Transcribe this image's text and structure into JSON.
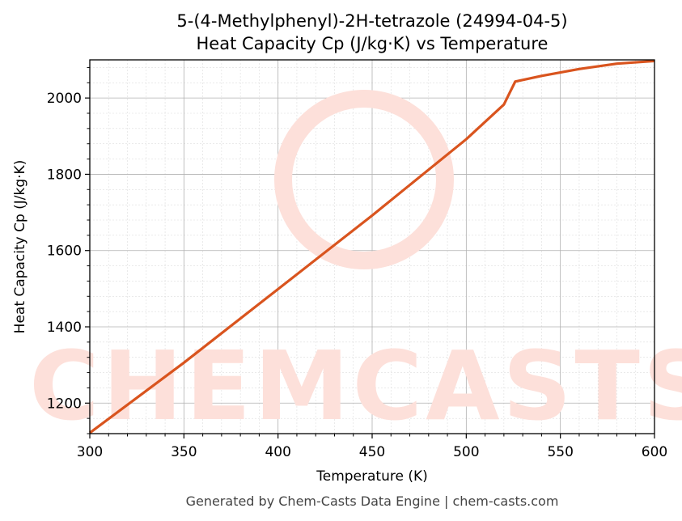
{
  "chart_data": {
    "type": "line",
    "title": "5-(4-Methylphenyl)-2H-tetrazole (24994-04-5)",
    "subtitle": "Heat Capacity Cp (J/kg·K) vs Temperature",
    "xlabel": "Temperature (K)",
    "ylabel": "Heat Capacity Cp (J/kg·K)",
    "xlim": [
      300,
      600
    ],
    "ylim": [
      1120,
      2100
    ],
    "xticks": [
      300,
      350,
      400,
      450,
      500,
      550,
      600
    ],
    "yticks": [
      1200,
      1400,
      1600,
      1800,
      2000
    ],
    "grid": true,
    "line_color": "#d9541e",
    "series": [
      {
        "x": [
          300,
          350,
          400,
          450,
          500,
          520,
          526,
          540,
          560,
          580,
          600
        ],
        "y": [
          1122,
          1306,
          1499,
          1692,
          1892,
          1983,
          2043,
          2058,
          2076,
          2090,
          2097
        ]
      }
    ]
  },
  "watermark": "CHEMCASTS",
  "footer": "Generated by Chem-Casts Data Engine | chem-casts.com"
}
